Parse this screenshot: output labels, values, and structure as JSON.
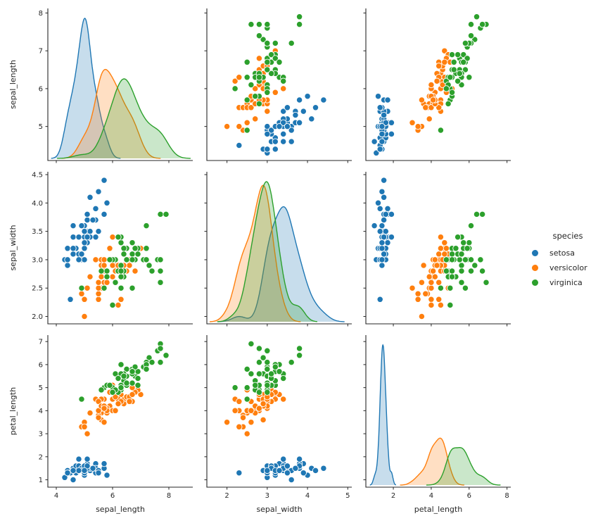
{
  "chart_data": {
    "type": "scatter",
    "subtype": "pairplot_scatter_matrix",
    "title": "",
    "diagonal": "kde",
    "variables": [
      "sepal_length",
      "sepal_width",
      "petal_length"
    ],
    "text_color": "#262626",
    "legend": {
      "title": "species",
      "position": "center right",
      "entries": [
        {
          "label": "setosa",
          "color": "#1f77b4"
        },
        {
          "label": "versicolor",
          "color": "#ff7f0e"
        },
        {
          "label": "virginica",
          "color": "#2ca02c"
        }
      ]
    },
    "axes": {
      "rows": [
        {
          "variable": "sepal_length",
          "lim": [
            4.1,
            8.12
          ],
          "ticks": [
            5,
            6,
            7,
            8
          ],
          "tick_labels": [
            "5",
            "6",
            "7",
            "8"
          ]
        },
        {
          "variable": "sepal_width",
          "lim": [
            1.87,
            4.55
          ],
          "ticks": [
            2.0,
            2.5,
            3.0,
            3.5,
            4.0,
            4.5
          ],
          "tick_labels": [
            "2.0",
            "2.5",
            "3.0",
            "3.5",
            "4.0",
            "4.5"
          ]
        },
        {
          "variable": "petal_length",
          "lim": [
            0.68,
            7.28
          ],
          "ticks": [
            1,
            2,
            3,
            4,
            5,
            6,
            7
          ],
          "tick_labels": [
            "1",
            "2",
            "3",
            "4",
            "5",
            "6",
            "7"
          ]
        }
      ],
      "columns": [
        {
          "variable": "sepal_length",
          "lim": [
            3.7,
            8.85
          ],
          "ticks": [
            4,
            6,
            8
          ],
          "tick_labels": [
            "4",
            "6",
            "8"
          ]
        },
        {
          "variable": "sepal_width",
          "lim": [
            1.5,
            5.1
          ],
          "ticks": [
            2,
            3,
            4,
            5
          ],
          "tick_labels": [
            "2",
            "3",
            "4",
            "5"
          ]
        },
        {
          "variable": "petal_length",
          "lim": [
            0.55,
            8.2
          ],
          "ticks": [
            2,
            4,
            6,
            8
          ],
          "tick_labels": [
            "2",
            "4",
            "6",
            "8"
          ]
        }
      ]
    },
    "series": [
      {
        "name": "setosa",
        "color": "#1f77b4",
        "points": [
          [
            5.1,
            3.5,
            1.4
          ],
          [
            4.9,
            3.0,
            1.4
          ],
          [
            4.7,
            3.2,
            1.3
          ],
          [
            4.6,
            3.1,
            1.5
          ],
          [
            5.0,
            3.6,
            1.4
          ],
          [
            5.4,
            3.9,
            1.7
          ],
          [
            4.6,
            3.4,
            1.4
          ],
          [
            5.0,
            3.4,
            1.5
          ],
          [
            4.4,
            2.9,
            1.4
          ],
          [
            4.9,
            3.1,
            1.5
          ],
          [
            5.4,
            3.7,
            1.5
          ],
          [
            4.8,
            3.4,
            1.6
          ],
          [
            4.8,
            3.0,
            1.4
          ],
          [
            4.3,
            3.0,
            1.1
          ],
          [
            5.8,
            4.0,
            1.2
          ],
          [
            5.7,
            4.4,
            1.5
          ],
          [
            5.4,
            3.9,
            1.3
          ],
          [
            5.1,
            3.5,
            1.4
          ],
          [
            5.7,
            3.8,
            1.7
          ],
          [
            5.1,
            3.8,
            1.5
          ],
          [
            5.4,
            3.4,
            1.7
          ],
          [
            5.1,
            3.7,
            1.5
          ],
          [
            4.6,
            3.6,
            1.0
          ],
          [
            5.1,
            3.3,
            1.7
          ],
          [
            4.8,
            3.4,
            1.9
          ],
          [
            5.0,
            3.0,
            1.6
          ],
          [
            5.0,
            3.4,
            1.6
          ],
          [
            5.2,
            3.5,
            1.5
          ],
          [
            5.2,
            3.4,
            1.4
          ],
          [
            4.7,
            3.2,
            1.6
          ],
          [
            4.8,
            3.1,
            1.6
          ],
          [
            5.4,
            3.4,
            1.5
          ],
          [
            5.2,
            4.1,
            1.5
          ],
          [
            5.5,
            4.2,
            1.4
          ],
          [
            4.9,
            3.1,
            1.5
          ],
          [
            5.0,
            3.2,
            1.2
          ],
          [
            5.5,
            3.5,
            1.3
          ],
          [
            4.9,
            3.6,
            1.4
          ],
          [
            4.4,
            3.0,
            1.3
          ],
          [
            5.1,
            3.4,
            1.5
          ],
          [
            5.0,
            3.5,
            1.3
          ],
          [
            4.5,
            2.3,
            1.3
          ],
          [
            4.4,
            3.2,
            1.3
          ],
          [
            5.0,
            3.5,
            1.6
          ],
          [
            5.1,
            3.8,
            1.9
          ],
          [
            4.8,
            3.0,
            1.4
          ],
          [
            5.1,
            3.8,
            1.6
          ],
          [
            4.6,
            3.2,
            1.4
          ],
          [
            5.3,
            3.7,
            1.5
          ],
          [
            5.0,
            3.3,
            1.4
          ]
        ]
      },
      {
        "name": "versicolor",
        "color": "#ff7f0e",
        "points": [
          [
            7.0,
            3.2,
            4.7
          ],
          [
            6.4,
            3.2,
            4.5
          ],
          [
            6.9,
            3.1,
            4.9
          ],
          [
            5.5,
            2.3,
            4.0
          ],
          [
            6.5,
            2.8,
            4.6
          ],
          [
            5.7,
            2.8,
            4.5
          ],
          [
            6.3,
            3.3,
            4.7
          ],
          [
            4.9,
            2.4,
            3.3
          ],
          [
            6.6,
            2.9,
            4.6
          ],
          [
            5.2,
            2.7,
            3.9
          ],
          [
            5.0,
            2.0,
            3.5
          ],
          [
            5.9,
            3.0,
            4.2
          ],
          [
            6.0,
            2.2,
            4.0
          ],
          [
            6.1,
            2.9,
            4.7
          ],
          [
            5.6,
            2.9,
            3.6
          ],
          [
            6.7,
            3.1,
            4.4
          ],
          [
            5.6,
            3.0,
            4.5
          ],
          [
            5.8,
            2.7,
            4.1
          ],
          [
            6.2,
            2.2,
            4.5
          ],
          [
            5.6,
            2.5,
            3.9
          ],
          [
            5.9,
            3.2,
            4.8
          ],
          [
            6.1,
            2.8,
            4.0
          ],
          [
            6.3,
            2.5,
            4.9
          ],
          [
            6.1,
            2.8,
            4.7
          ],
          [
            6.4,
            2.9,
            4.3
          ],
          [
            6.6,
            3.0,
            4.4
          ],
          [
            6.8,
            2.8,
            4.8
          ],
          [
            6.7,
            3.0,
            5.0
          ],
          [
            6.0,
            2.9,
            4.5
          ],
          [
            5.7,
            2.6,
            3.5
          ],
          [
            5.5,
            2.4,
            3.8
          ],
          [
            5.5,
            2.4,
            3.7
          ],
          [
            5.8,
            2.7,
            3.9
          ],
          [
            6.0,
            2.7,
            5.1
          ],
          [
            5.4,
            3.0,
            4.5
          ],
          [
            6.0,
            3.4,
            4.5
          ],
          [
            6.7,
            3.1,
            4.7
          ],
          [
            6.3,
            2.3,
            4.4
          ],
          [
            5.6,
            3.0,
            4.1
          ],
          [
            5.5,
            2.5,
            4.0
          ],
          [
            5.5,
            2.6,
            4.4
          ],
          [
            6.1,
            3.0,
            4.6
          ],
          [
            5.8,
            2.6,
            4.0
          ],
          [
            5.0,
            2.3,
            3.3
          ],
          [
            5.6,
            2.7,
            4.2
          ],
          [
            5.7,
            3.0,
            4.2
          ],
          [
            5.7,
            2.9,
            4.2
          ],
          [
            6.2,
            2.9,
            4.3
          ],
          [
            5.1,
            2.5,
            3.0
          ],
          [
            5.7,
            2.8,
            4.1
          ]
        ]
      },
      {
        "name": "virginica",
        "color": "#2ca02c",
        "points": [
          [
            6.3,
            3.3,
            6.0
          ],
          [
            5.8,
            2.7,
            5.1
          ],
          [
            7.1,
            3.0,
            5.9
          ],
          [
            6.3,
            2.9,
            5.6
          ],
          [
            6.5,
            3.0,
            5.8
          ],
          [
            7.6,
            3.0,
            6.6
          ],
          [
            4.9,
            2.5,
            4.5
          ],
          [
            7.3,
            2.9,
            6.3
          ],
          [
            6.7,
            2.5,
            5.8
          ],
          [
            7.2,
            3.6,
            6.1
          ],
          [
            6.5,
            3.2,
            5.1
          ],
          [
            6.4,
            2.7,
            5.3
          ],
          [
            6.8,
            3.0,
            5.5
          ],
          [
            5.7,
            2.5,
            5.0
          ],
          [
            5.8,
            2.8,
            5.1
          ],
          [
            6.4,
            3.2,
            5.3
          ],
          [
            6.5,
            3.0,
            5.5
          ],
          [
            7.7,
            3.8,
            6.7
          ],
          [
            7.7,
            2.6,
            6.9
          ],
          [
            6.0,
            2.2,
            5.0
          ],
          [
            6.9,
            3.2,
            5.7
          ],
          [
            5.6,
            2.8,
            4.9
          ],
          [
            7.7,
            2.8,
            6.7
          ],
          [
            6.3,
            2.7,
            4.9
          ],
          [
            6.7,
            3.3,
            5.7
          ],
          [
            7.2,
            3.2,
            6.0
          ],
          [
            6.2,
            2.8,
            4.8
          ],
          [
            6.1,
            3.0,
            4.9
          ],
          [
            6.4,
            2.8,
            5.6
          ],
          [
            7.2,
            3.0,
            5.8
          ],
          [
            7.4,
            2.8,
            6.1
          ],
          [
            7.9,
            3.8,
            6.4
          ],
          [
            6.4,
            2.8,
            5.6
          ],
          [
            6.3,
            2.8,
            5.1
          ],
          [
            6.1,
            2.6,
            5.6
          ],
          [
            7.7,
            3.0,
            6.1
          ],
          [
            6.3,
            3.4,
            5.6
          ],
          [
            6.4,
            3.1,
            5.5
          ],
          [
            6.0,
            3.0,
            4.8
          ],
          [
            6.9,
            3.1,
            5.4
          ],
          [
            6.7,
            3.1,
            5.6
          ],
          [
            6.9,
            3.1,
            5.1
          ],
          [
            5.8,
            2.7,
            5.1
          ],
          [
            6.8,
            3.2,
            5.9
          ],
          [
            6.7,
            3.3,
            5.7
          ],
          [
            6.7,
            3.0,
            5.2
          ],
          [
            6.3,
            2.5,
            5.0
          ],
          [
            6.5,
            3.0,
            5.2
          ],
          [
            6.2,
            3.4,
            5.4
          ],
          [
            5.9,
            3.0,
            5.1
          ]
        ]
      }
    ]
  }
}
